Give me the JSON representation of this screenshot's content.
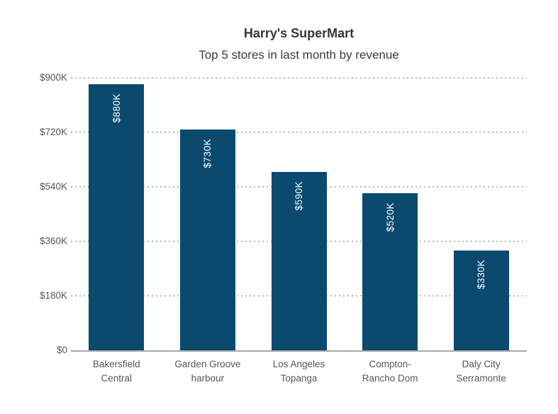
{
  "chart_data": {
    "type": "bar",
    "title": "Harry's SuperMart",
    "subtitle": "Top 5 stores in last month by revenue",
    "categories": [
      "Bakersfield Central",
      "Garden Groove harbour",
      "Los Angeles Topanga",
      "Compton-Rancho Dom",
      "Daly City Serramonte"
    ],
    "category_lines": [
      [
        "Bakersfield",
        "Central"
      ],
      [
        "Garden Groove",
        "harbour"
      ],
      [
        "Los Angeles",
        "Topanga"
      ],
      [
        "Compton-",
        "Rancho Dom"
      ],
      [
        "Daly City",
        "Serramonte"
      ]
    ],
    "values": [
      880000,
      730000,
      590000,
      520000,
      330000
    ],
    "bar_labels": [
      "$880K",
      "$730K",
      "$590K",
      "$520K",
      "$330K"
    ],
    "y_ticks": [
      "$0",
      "$180K",
      "$360K",
      "$540K",
      "$720K",
      "$900K"
    ],
    "y_tick_values": [
      0,
      180000,
      360000,
      540000,
      720000,
      900000
    ],
    "ylim": [
      0,
      900000
    ],
    "xlabel": "",
    "ylabel": "",
    "legend": "none",
    "grid": "horizontal-dotted",
    "bar_color": "#0a4a6e",
    "bar_label_color": "#ffffff",
    "title_color": "#363636",
    "axis_label_color": "#565656",
    "gridline_color": "#b5b5b5",
    "baseline_color": "#a8a8a8"
  }
}
